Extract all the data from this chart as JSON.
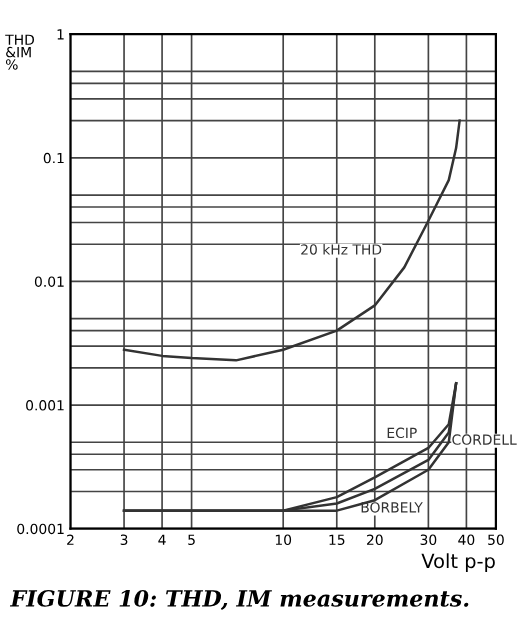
{
  "chart_data": {
    "type": "line",
    "title": "FIGURE 10: THD, IM measurements.",
    "xlabel": "Volt p-p",
    "ylabel": "THD\n&IM\n%",
    "log": "xy",
    "xlim": [
      2,
      50
    ],
    "ylim": [
      0.0001,
      1
    ],
    "xticks": [
      2,
      3,
      4,
      5,
      10,
      15,
      20,
      30,
      40,
      50
    ],
    "yticks": [
      {
        "value": 0.0001,
        "label": "0.0001"
      },
      {
        "value": 0.0002,
        "label": null
      },
      {
        "value": 0.0003,
        "label": null
      },
      {
        "value": 0.0004,
        "label": null
      },
      {
        "value": 0.0005,
        "label": null
      },
      {
        "value": 0.001,
        "label": "0.001"
      },
      {
        "value": 0.002,
        "label": null
      },
      {
        "value": 0.003,
        "label": null
      },
      {
        "value": 0.004,
        "label": null
      },
      {
        "value": 0.005,
        "label": null
      },
      {
        "value": 0.01,
        "label": "0.01"
      },
      {
        "value": 0.02,
        "label": null
      },
      {
        "value": 0.03,
        "label": null
      },
      {
        "value": 0.04,
        "label": null
      },
      {
        "value": 0.05,
        "label": null
      },
      {
        "value": 0.1,
        "label": "0.1"
      },
      {
        "value": 0.2,
        "label": null
      },
      {
        "value": 0.3,
        "label": null
      },
      {
        "value": 0.4,
        "label": null
      },
      {
        "value": 0.5,
        "label": null
      },
      {
        "value": 1,
        "label": "1"
      }
    ],
    "grid": true,
    "legend": false,
    "line_style": "solid",
    "series": [
      {
        "name": "20 kHz THD",
        "color": "#333333",
        "x": [
          3,
          4,
          5,
          7,
          10,
          15,
          20,
          25,
          30,
          35,
          37,
          38
        ],
        "values": [
          0.0028,
          0.0025,
          0.0024,
          0.0023,
          0.0028,
          0.004,
          0.0064,
          0.013,
          0.031,
          0.066,
          0.12,
          0.2
        ]
      },
      {
        "name": "ECIP",
        "color": "#333333",
        "x": [
          3,
          10,
          15,
          20,
          30,
          35,
          37
        ],
        "values": [
          0.00014,
          0.00014,
          0.00018,
          0.00026,
          0.00045,
          0.0007,
          0.0015
        ]
      },
      {
        "name": "CORDELL",
        "color": "#333333",
        "x": [
          3,
          10,
          15,
          20,
          30,
          35,
          37
        ],
        "values": [
          0.00014,
          0.00014,
          0.00016,
          0.00021,
          0.00036,
          0.0006,
          0.0015
        ]
      },
      {
        "name": "BORBELY",
        "color": "#333333",
        "x": [
          3,
          10,
          15,
          20,
          30,
          35,
          37
        ],
        "values": [
          0.00014,
          0.00014,
          0.00014,
          0.00017,
          0.0003,
          0.0005,
          0.0015
        ]
      }
    ]
  }
}
